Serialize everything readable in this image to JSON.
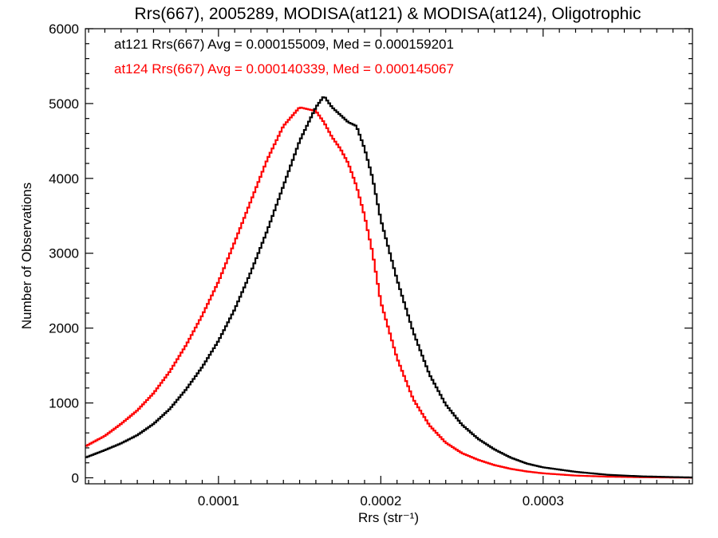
{
  "chart_data": {
    "type": "line",
    "title": "Rrs(667), 2005289, MODISA(at121) & MODISA(at124), Oligotrophic",
    "xlabel": "Rrs (str⁻¹)",
    "ylabel": "Number of Observations",
    "xlim": [
      1.8e-05,
      0.000392
    ],
    "ylim": [
      -80,
      6000
    ],
    "xticks": [
      0.0001,
      0.0002,
      0.0003
    ],
    "xtick_labels": [
      "0.0001",
      "0.0002",
      "0.0003"
    ],
    "yticks": [
      0,
      1000,
      2000,
      3000,
      4000,
      5000,
      6000
    ],
    "ytick_labels": [
      "0",
      "1000",
      "2000",
      "3000",
      "4000",
      "5000",
      "6000"
    ],
    "grid": false,
    "legend_position": "top-left",
    "series": [
      {
        "name": "at121",
        "legend": "at121 Rrs(667) Avg = 0.000155009, Med = 0.000159201",
        "color": "#000000",
        "x": [
          1.8e-05,
          3e-05,
          4e-05,
          5e-05,
          6e-05,
          7e-05,
          8e-05,
          9e-05,
          0.0001,
          0.00011,
          0.00012,
          0.00013,
          0.00014,
          0.00015,
          0.00016,
          0.000165,
          0.00017,
          0.000175,
          0.00018,
          0.000185,
          0.00019,
          0.000195,
          0.0002,
          0.00021,
          0.00022,
          0.00023,
          0.00024,
          0.00025,
          0.00026,
          0.00027,
          0.00028,
          0.00029,
          0.0003,
          0.00032,
          0.00034,
          0.00036,
          0.00038,
          0.000392
        ],
        "y": [
          270,
          370,
          460,
          570,
          720,
          920,
          1180,
          1480,
          1830,
          2250,
          2750,
          3300,
          3900,
          4500,
          4950,
          5100,
          4950,
          4850,
          4750,
          4700,
          4400,
          4000,
          3450,
          2650,
          1950,
          1380,
          980,
          710,
          520,
          380,
          270,
          190,
          140,
          80,
          40,
          20,
          10,
          5
        ]
      },
      {
        "name": "at124",
        "legend": "at124 Rrs(667) Avg = 0.000140339, Med = 0.000145067",
        "color": "#ff0000",
        "x": [
          1.8e-05,
          3e-05,
          4e-05,
          5e-05,
          6e-05,
          7e-05,
          8e-05,
          9e-05,
          0.0001,
          0.00011,
          0.00012,
          0.00013,
          0.00014,
          0.00015,
          0.00016,
          0.000165,
          0.00017,
          0.000175,
          0.00018,
          0.000185,
          0.00019,
          0.000195,
          0.0002,
          0.00021,
          0.00022,
          0.00023,
          0.00024,
          0.00025,
          0.00026,
          0.00027,
          0.00028,
          0.00029,
          0.0003,
          0.00032,
          0.00034,
          0.00036,
          0.00038,
          0.000392
        ],
        "y": [
          420,
          560,
          720,
          900,
          1130,
          1420,
          1770,
          2170,
          2620,
          3150,
          3700,
          4250,
          4700,
          4950,
          4900,
          4750,
          4550,
          4400,
          4200,
          3900,
          3500,
          3000,
          2350,
          1600,
          1050,
          700,
          470,
          330,
          240,
          170,
          120,
          85,
          60,
          30,
          15,
          8,
          4,
          2
        ]
      }
    ]
  }
}
